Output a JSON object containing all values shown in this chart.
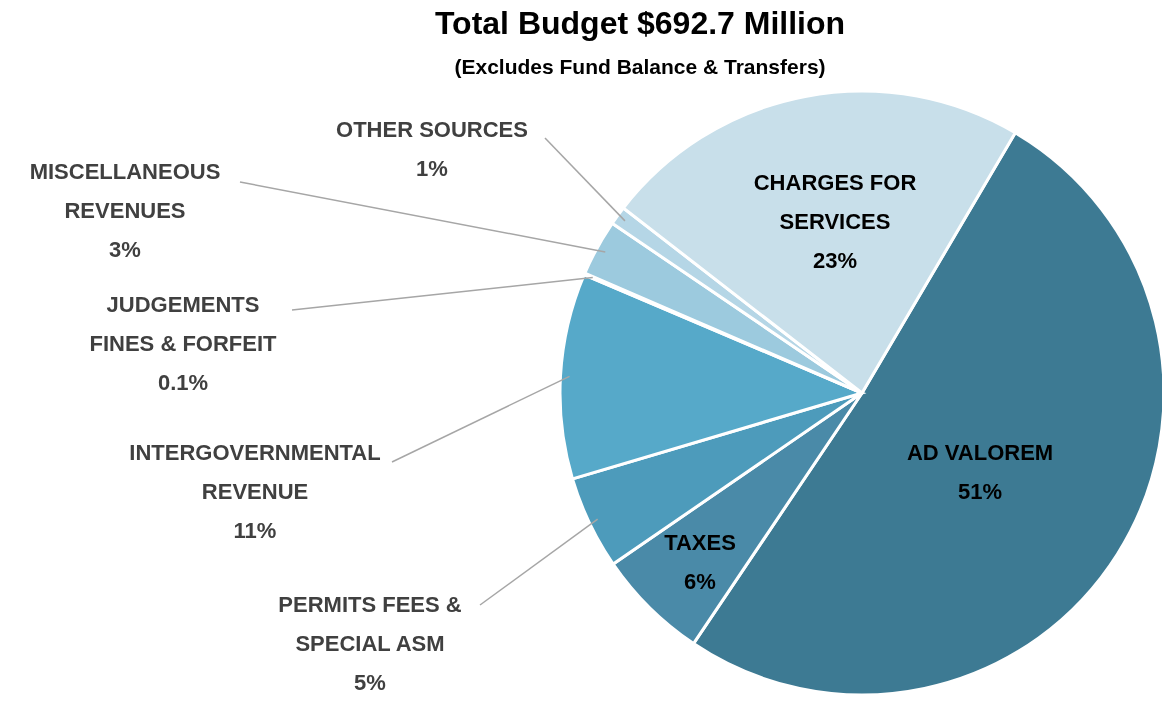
{
  "chart_data": {
    "type": "pie",
    "title": "Total Budget $692.7 Million",
    "subtitle": "(Excludes Fund Balance & Transfers)",
    "categories": [
      "AD VALOREM",
      "TAXES",
      "PERMITS FEES &\nSPECIAL ASM",
      "INTERGOVERNMENTAL\nREVENUE",
      "JUDGEMENTS\nFINES & FORFEIT",
      "MISCELLANEOUS\nREVENUES",
      "OTHER SOURCES",
      "CHARGES FOR\nSERVICES"
    ],
    "values": [
      51,
      6,
      5,
      11,
      0.1,
      3,
      1,
      23
    ],
    "colors": [
      "#3d7a93",
      "#4a8aa8",
      "#4d9bbb",
      "#56a9c9",
      "#56a9c9",
      "#9ccade",
      "#b5d6e6",
      "#c8dfea"
    ],
    "value_labels": [
      "51%",
      "6%",
      "5%",
      "11%",
      "0.1%",
      "3%",
      "1%",
      "23%"
    ]
  }
}
